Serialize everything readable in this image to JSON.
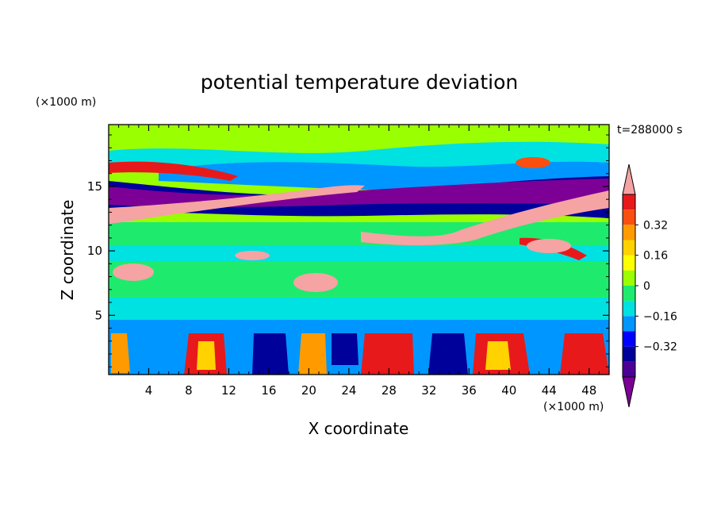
{
  "chart_data": {
    "type": "heatmap",
    "title": "potential temperature deviation",
    "time_label": "t=288000 s",
    "xlabel": "X coordinate",
    "ylabel": "Z coordinate",
    "x_unit": "(×1000 m)",
    "y_unit": "(×1000 m)",
    "xlim": [
      0,
      50
    ],
    "ylim": [
      0.4,
      19.8
    ],
    "x_ticks": [
      4,
      8,
      12,
      16,
      20,
      24,
      28,
      32,
      36,
      40,
      44,
      48
    ],
    "y_ticks": [
      5,
      10,
      15
    ],
    "colorbar": {
      "levels": [
        -0.48,
        -0.4,
        -0.32,
        -0.24,
        -0.16,
        -0.08,
        0,
        0.08,
        0.16,
        0.24,
        0.32,
        0.4,
        0.48
      ],
      "labeled_levels": [
        0.32,
        0.16,
        0,
        -0.16,
        -0.32
      ],
      "labels": [
        "0.32",
        "0.16",
        "0",
        "−0.16",
        "−0.32"
      ],
      "extend": "both",
      "colors": [
        "#f5a3a3",
        "#e8191b",
        "#fa4f0f",
        "#ff9b00",
        "#ffd200",
        "#ffff00",
        "#9aff00",
        "#1eeb6e",
        "#00e1e1",
        "#0096ff",
        "#0000ff",
        "#00009a",
        "#4b0096",
        "#7d0096"
      ]
    },
    "notes": "Layered field: positive (pink/red) band rising from z≈13 at x=0 to z≈15 at x≈24, second positive band z≈11-12 from x≈25 to x≈50; negative (purple) bands above and below; alternating convective cells below z≈4."
  }
}
